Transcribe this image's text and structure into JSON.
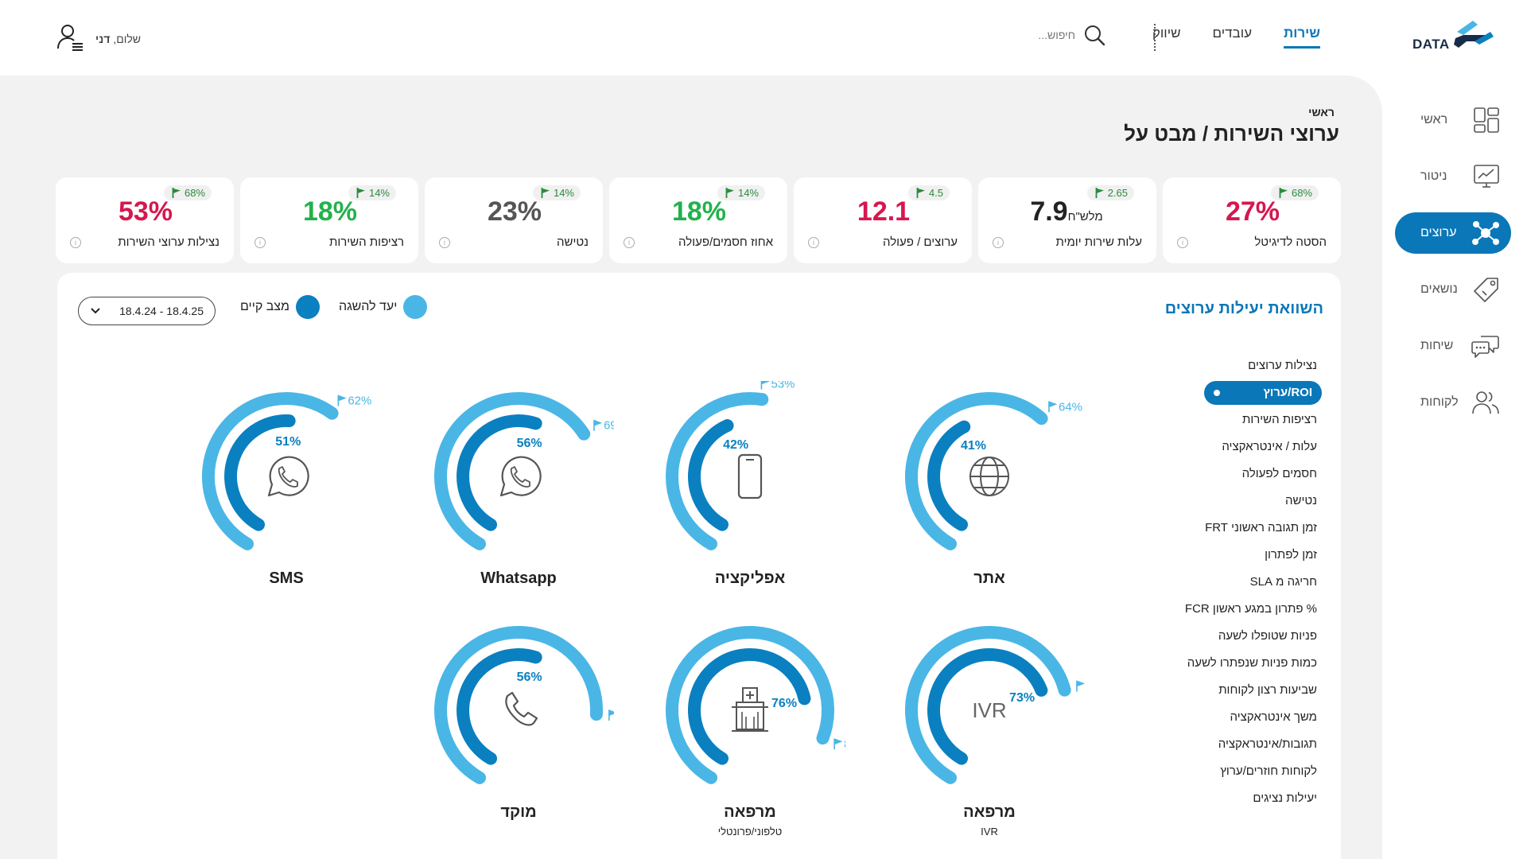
{
  "header": {
    "logo_text": "DATA",
    "nav": [
      {
        "label": "שירות",
        "active": true
      },
      {
        "label": "עובדים",
        "active": false
      },
      {
        "label": "שיווק",
        "active": false
      }
    ],
    "search_placeholder": "חיפוש...",
    "greeting": "שלום,",
    "user_name": "דני"
  },
  "sidebar": {
    "items": [
      {
        "label": "ראשי",
        "icon": "dashboard-icon",
        "active": false
      },
      {
        "label": "ניטור",
        "icon": "monitor-chart-icon",
        "active": false
      },
      {
        "label": "ערוצים",
        "icon": "network-nodes-icon",
        "active": true
      },
      {
        "label": "נושאים",
        "icon": "tag-icon",
        "active": false
      },
      {
        "label": "שיחות",
        "icon": "chat-bubbles-icon",
        "active": false
      },
      {
        "label": "לקוחות",
        "icon": "users-icon",
        "active": false
      }
    ]
  },
  "page": {
    "breadcrumb": "ראשי",
    "title": "ערוצי השירות / מבט על"
  },
  "kpis": [
    {
      "value": "27%",
      "unit": "",
      "target": "68%",
      "label": "הסטה לדיגיטל",
      "color": "#d6174f"
    },
    {
      "value": "7.9",
      "unit": "מלש\"ח",
      "target": "2.65",
      "label": "עלות שירות יומית",
      "color": "#222222"
    },
    {
      "value": "12.1",
      "unit": "",
      "target": "4.5",
      "label": "ערוצים / פעולה",
      "color": "#d6174f"
    },
    {
      "value": "18%",
      "unit": "",
      "target": "14%",
      "label": "אחוז חסמים/פעולה",
      "color": "#22b24c"
    },
    {
      "value": "23%",
      "unit": "",
      "target": "14%",
      "label": "נטישה",
      "color": "#555555"
    },
    {
      "value": "18%",
      "unit": "",
      "target": "14%",
      "label": "רציפות השירות",
      "color": "#22b24c"
    },
    {
      "value": "53%",
      "unit": "",
      "target": "68%",
      "label": "נצילות ערוצי השירות",
      "color": "#d6174f"
    }
  ],
  "panel": {
    "title": "השוואת יעילות ערוצים",
    "legend_target": "יעד להשגה",
    "legend_current": "מצב קיים",
    "date_range": "18.4.24 - 18.4.25",
    "colors": {
      "target": "#4ab6e6",
      "current": "#0a80c0",
      "track": "#e8e8e8"
    }
  },
  "metrics": [
    "נצילות ערוצים",
    "ROI/ערוץ",
    "רציפות השירות",
    "עלות / אינטראקציה",
    "חסמים לפעולה",
    "נטישה",
    "זמן תגובה ראשוני FRT",
    "זמן לפתרון",
    "חריגה מ SLA",
    "% פתרון במגע ראשון FCR",
    "פניות שטופלו לשעה",
    "כמות פניות שנפתרו לשעה",
    "שביעות רצון לקוחות",
    "משך אינטראקציה",
    "תגובות/אינטראקציה",
    "לקוחות חוזרים/ערוץ",
    "יעילות נציגים"
  ],
  "selected_metric_index": 1,
  "channels": [
    {
      "name": "אתר",
      "sub": "",
      "icon": "globe-icon",
      "current": 41,
      "target": 64,
      "current_label": "41%",
      "target_label": "64%"
    },
    {
      "name": "אפליקציה",
      "sub": "",
      "icon": "smartphone-icon",
      "current": 42,
      "target": 53,
      "current_label": "42%",
      "target_label": "53%"
    },
    {
      "name": "Whatsapp",
      "sub": "",
      "icon": "whatsapp-icon",
      "current": 56,
      "target": 69,
      "current_label": "56%",
      "target_label": "69%"
    },
    {
      "name": "SMS",
      "sub": "",
      "icon": "whatsapp-icon",
      "current": 51,
      "target": 62,
      "current_label": "51%",
      "target_label": "62%"
    },
    {
      "name": "מרפאה",
      "sub": "IVR",
      "icon": "ivr-text-icon",
      "icon_text": "IVR",
      "current": 73,
      "target": 75,
      "current_label": "73%",
      "target_label": "75%"
    },
    {
      "name": "מרפאה",
      "sub": "טלפוני/פרונטלי",
      "icon": "clinic-icon",
      "current": 76,
      "target": 87,
      "current_label": "76%",
      "target_label": "87%"
    },
    {
      "name": "מוקד",
      "sub": "",
      "icon": "phone-icon",
      "current": 56,
      "target": 81,
      "current_label": "56%",
      "target_label": "81%"
    }
  ]
}
